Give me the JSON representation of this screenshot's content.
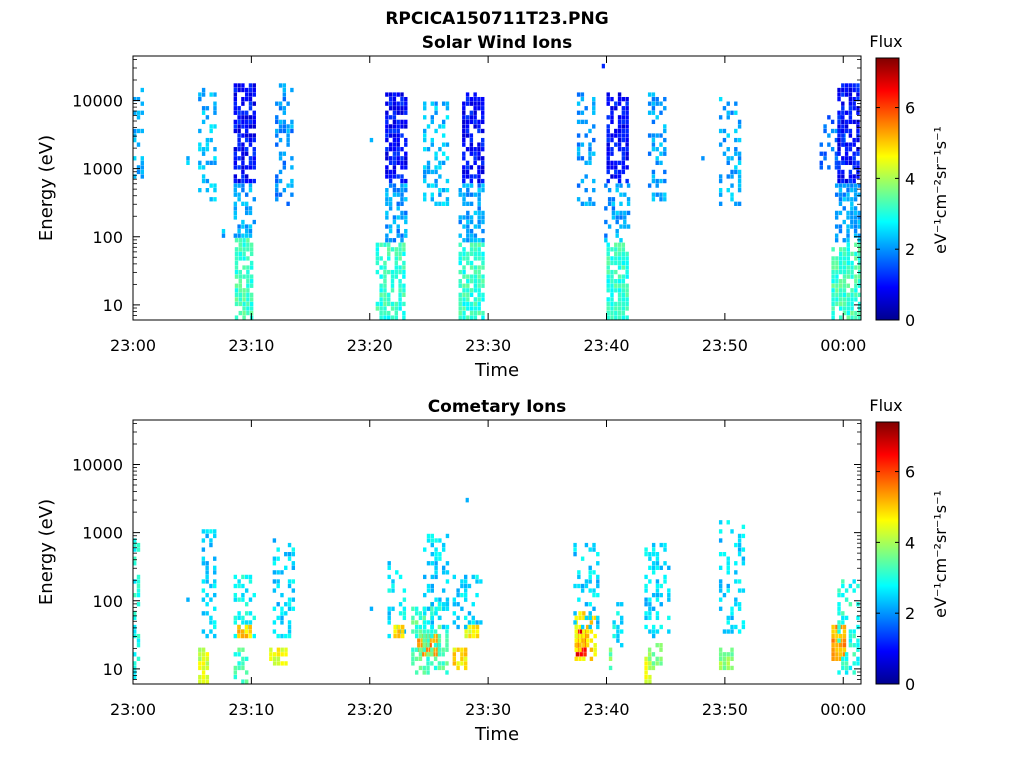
{
  "figure": {
    "filename_title": "RPCICA150711T23.PNG"
  },
  "colors": {
    "colormap": "jet",
    "background": "#ffffff",
    "axis": "#000000"
  },
  "chart_data": [
    {
      "type": "heatmap",
      "title": "Solar Wind Ions",
      "xlabel": "Time",
      "ylabel": "Energy (eV)",
      "x_tick_labels": [
        "23:00",
        "23:10",
        "23:20",
        "23:30",
        "23:40",
        "23:50",
        "00:00"
      ],
      "x_range_minutes": [
        0,
        61.5
      ],
      "y_scale": "log",
      "y_tick_labels": [
        "10",
        "100",
        "1000",
        "10000"
      ],
      "y_range": [
        6,
        45000
      ],
      "colorbar": {
        "title": "Flux",
        "label": "eV⁻¹cm⁻²sr⁻¹s⁻¹",
        "range": [
          0,
          7.4
        ],
        "ticks": [
          "0",
          "2",
          "4",
          "6"
        ]
      },
      "bursts": [
        {
          "t_start_min": 0.0,
          "t_end_min": 0.8,
          "e_min": 600,
          "e_max": 18000,
          "flux_level": 2.2,
          "density": 0.35
        },
        {
          "t_start_min": 4.5,
          "t_end_min": 4.8,
          "e_min": 1200,
          "e_max": 1500,
          "flux_level": 2.3,
          "density": 0.9
        },
        {
          "t_start_min": 5.5,
          "t_end_min": 7.0,
          "e_min": 280,
          "e_max": 17000,
          "flux_level": 2.3,
          "density": 0.35
        },
        {
          "t_start_min": 7.5,
          "t_end_min": 7.8,
          "e_min": 100,
          "e_max": 130,
          "flux_level": 2.3,
          "density": 0.9
        },
        {
          "t_start_min": 8.5,
          "t_end_min": 10.2,
          "e_min": 600,
          "e_max": 18000,
          "flux_level": 1.0,
          "density": 0.75
        },
        {
          "t_start_min": 8.5,
          "t_end_min": 10.2,
          "e_min": 90,
          "e_max": 600,
          "flux_level": 2.1,
          "density": 0.55
        },
        {
          "t_start_min": 8.6,
          "t_end_min": 10.2,
          "e_min": 6,
          "e_max": 90,
          "flux_level": 3.2,
          "density": 0.8
        },
        {
          "t_start_min": 12.0,
          "t_end_min": 13.5,
          "e_min": 300,
          "e_max": 18000,
          "flux_level": 2.0,
          "density": 0.35
        },
        {
          "t_start_min": 20.0,
          "t_end_min": 20.3,
          "e_min": 2500,
          "e_max": 3000,
          "flux_level": 2.3,
          "density": 0.9
        },
        {
          "t_start_min": 21.3,
          "t_end_min": 23.0,
          "e_min": 600,
          "e_max": 14000,
          "flux_level": 1.0,
          "density": 0.75
        },
        {
          "t_start_min": 21.3,
          "t_end_min": 23.0,
          "e_min": 80,
          "e_max": 600,
          "flux_level": 2.1,
          "density": 0.55
        },
        {
          "t_start_min": 20.5,
          "t_end_min": 23.0,
          "e_min": 6,
          "e_max": 80,
          "flux_level": 3.1,
          "density": 0.7
        },
        {
          "t_start_min": 24.5,
          "t_end_min": 26.5,
          "e_min": 280,
          "e_max": 9500,
          "flux_level": 2.3,
          "density": 0.35
        },
        {
          "t_start_min": 27.8,
          "t_end_min": 29.5,
          "e_min": 600,
          "e_max": 14000,
          "flux_level": 1.0,
          "density": 0.75
        },
        {
          "t_start_min": 27.5,
          "t_end_min": 29.5,
          "e_min": 80,
          "e_max": 600,
          "flux_level": 2.1,
          "density": 0.55
        },
        {
          "t_start_min": 27.5,
          "t_end_min": 29.5,
          "e_min": 6,
          "e_max": 80,
          "flux_level": 3.1,
          "density": 0.8
        },
        {
          "t_start_min": 37.5,
          "t_end_min": 39.0,
          "e_min": 280,
          "e_max": 14000,
          "flux_level": 2.0,
          "density": 0.35
        },
        {
          "t_start_min": 40.0,
          "t_end_min": 41.8,
          "e_min": 600,
          "e_max": 14000,
          "flux_level": 1.0,
          "density": 0.75
        },
        {
          "t_start_min": 39.8,
          "t_end_min": 41.8,
          "e_min": 80,
          "e_max": 600,
          "flux_level": 2.1,
          "density": 0.55
        },
        {
          "t_start_min": 40.0,
          "t_end_min": 41.8,
          "e_min": 6,
          "e_max": 80,
          "flux_level": 3.1,
          "density": 0.8
        },
        {
          "t_start_min": 43.5,
          "t_end_min": 45.0,
          "e_min": 350,
          "e_max": 14000,
          "flux_level": 2.1,
          "density": 0.35
        },
        {
          "t_start_min": 48.0,
          "t_end_min": 48.2,
          "e_min": 1400,
          "e_max": 1600,
          "flux_level": 2.3,
          "density": 0.9
        },
        {
          "t_start_min": 49.5,
          "t_end_min": 51.3,
          "e_min": 300,
          "e_max": 11000,
          "flux_level": 2.2,
          "density": 0.35
        },
        {
          "t_start_min": 58.0,
          "t_end_min": 60.0,
          "e_min": 900,
          "e_max": 6000,
          "flux_level": 1.7,
          "density": 0.3
        },
        {
          "t_start_min": 59.5,
          "t_end_min": 61.4,
          "e_min": 600,
          "e_max": 17000,
          "flux_level": 1.0,
          "density": 0.75
        },
        {
          "t_start_min": 59.3,
          "t_end_min": 61.4,
          "e_min": 80,
          "e_max": 600,
          "flux_level": 2.1,
          "density": 0.6
        },
        {
          "t_start_min": 59.0,
          "t_end_min": 61.4,
          "e_min": 6,
          "e_max": 80,
          "flux_level": 3.2,
          "density": 0.8
        }
      ],
      "isolated_points": [
        {
          "t_min": 39.6,
          "e": 32000,
          "flux_level": 1.2
        }
      ]
    },
    {
      "type": "heatmap",
      "title": "Cometary Ions",
      "xlabel": "Time",
      "ylabel": "Energy (eV)",
      "x_tick_labels": [
        "23:00",
        "23:10",
        "23:20",
        "23:30",
        "23:40",
        "23:50",
        "00:00"
      ],
      "x_range_minutes": [
        0,
        61.5
      ],
      "y_scale": "log",
      "y_tick_labels": [
        "10",
        "100",
        "1000",
        "10000"
      ],
      "y_range": [
        6,
        45000
      ],
      "colorbar": {
        "title": "Flux",
        "label": "eV⁻¹cm⁻²sr⁻¹s⁻¹",
        "range": [
          0,
          7.4
        ],
        "ticks": [
          "0",
          "2",
          "4",
          "6"
        ]
      },
      "bursts": [
        {
          "t_start_min": 0.0,
          "t_end_min": 0.6,
          "e_min": 6,
          "e_max": 800,
          "flux_level": 2.9,
          "density": 0.4
        },
        {
          "t_start_min": 4.5,
          "t_end_min": 4.7,
          "e_min": 95,
          "e_max": 110,
          "flux_level": 2.5,
          "density": 0.9
        },
        {
          "t_start_min": 5.5,
          "t_end_min": 6.2,
          "e_min": 6,
          "e_max": 22,
          "flux_level": 4.3,
          "density": 0.9
        },
        {
          "t_start_min": 5.8,
          "t_end_min": 7.0,
          "e_min": 30,
          "e_max": 1100,
          "flux_level": 2.5,
          "density": 0.35
        },
        {
          "t_start_min": 8.5,
          "t_end_min": 10.2,
          "e_min": 30,
          "e_max": 230,
          "flux_level": 2.8,
          "density": 0.4
        },
        {
          "t_start_min": 8.8,
          "t_end_min": 10.0,
          "e_min": 28,
          "e_max": 42,
          "flux_level": 5.0,
          "density": 0.9
        },
        {
          "t_start_min": 8.5,
          "t_end_min": 9.5,
          "e_min": 6,
          "e_max": 22,
          "flux_level": 3.2,
          "density": 0.6
        },
        {
          "t_start_min": 11.5,
          "t_end_min": 13.0,
          "e_min": 11,
          "e_max": 22,
          "flux_level": 4.5,
          "density": 0.9
        },
        {
          "t_start_min": 11.8,
          "t_end_min": 13.5,
          "e_min": 30,
          "e_max": 950,
          "flux_level": 2.5,
          "density": 0.35
        },
        {
          "t_start_min": 20.0,
          "t_end_min": 20.3,
          "e_min": 70,
          "e_max": 80,
          "flux_level": 2.5,
          "density": 0.9
        },
        {
          "t_start_min": 21.5,
          "t_end_min": 23.0,
          "e_min": 30,
          "e_max": 400,
          "flux_level": 2.6,
          "density": 0.35
        },
        {
          "t_start_min": 22.0,
          "t_end_min": 22.8,
          "e_min": 28,
          "e_max": 42,
          "flux_level": 5.0,
          "density": 0.9
        },
        {
          "t_start_min": 24.0,
          "t_end_min": 25.8,
          "e_min": 14,
          "e_max": 32,
          "flux_level": 5.4,
          "density": 0.9
        },
        {
          "t_start_min": 23.5,
          "t_end_min": 26.5,
          "e_min": 8,
          "e_max": 100,
          "flux_level": 3.3,
          "density": 0.55
        },
        {
          "t_start_min": 24.5,
          "t_end_min": 26.5,
          "e_min": 40,
          "e_max": 1000,
          "flux_level": 2.5,
          "density": 0.35
        },
        {
          "t_start_min": 27.0,
          "t_end_min": 28.0,
          "e_min": 10,
          "e_max": 22,
          "flux_level": 4.8,
          "density": 0.9
        },
        {
          "t_start_min": 28.0,
          "t_end_min": 29.2,
          "e_min": 28,
          "e_max": 42,
          "flux_level": 4.6,
          "density": 0.8
        },
        {
          "t_start_min": 27.0,
          "t_end_min": 29.5,
          "e_min": 40,
          "e_max": 250,
          "flux_level": 2.5,
          "density": 0.35
        },
        {
          "t_start_min": 37.4,
          "t_end_min": 38.2,
          "e_min": 16,
          "e_max": 40,
          "flux_level": 6.4,
          "density": 0.95
        },
        {
          "t_start_min": 37.3,
          "t_end_min": 39.0,
          "e_min": 12,
          "e_max": 70,
          "flux_level": 4.8,
          "density": 0.7
        },
        {
          "t_start_min": 37.2,
          "t_end_min": 39.2,
          "e_min": 40,
          "e_max": 700,
          "flux_level": 2.5,
          "density": 0.35
        },
        {
          "t_start_min": 40.2,
          "t_end_min": 40.5,
          "e_min": 9,
          "e_max": 20,
          "flux_level": 3.6,
          "density": 0.8
        },
        {
          "t_start_min": 40.5,
          "t_end_min": 41.2,
          "e_min": 20,
          "e_max": 90,
          "flux_level": 2.7,
          "density": 0.4
        },
        {
          "t_start_min": 43.2,
          "t_end_min": 45.2,
          "e_min": 30,
          "e_max": 700,
          "flux_level": 2.5,
          "density": 0.35
        },
        {
          "t_start_min": 43.2,
          "t_end_min": 43.7,
          "e_min": 6,
          "e_max": 14,
          "flux_level": 4.3,
          "density": 0.9
        },
        {
          "t_start_min": 43.5,
          "t_end_min": 44.5,
          "e_min": 10,
          "e_max": 25,
          "flux_level": 3.8,
          "density": 0.6
        },
        {
          "t_start_min": 49.5,
          "t_end_min": 51.5,
          "e_min": 30,
          "e_max": 1500,
          "flux_level": 2.5,
          "density": 0.3
        },
        {
          "t_start_min": 49.5,
          "t_end_min": 50.5,
          "e_min": 10,
          "e_max": 22,
          "flux_level": 3.8,
          "density": 0.7
        },
        {
          "t_start_min": 59.0,
          "t_end_min": 60.2,
          "e_min": 12,
          "e_max": 45,
          "flux_level": 5.3,
          "density": 0.85
        },
        {
          "t_start_min": 59.5,
          "t_end_min": 61.4,
          "e_min": 8,
          "e_max": 200,
          "flux_level": 3.0,
          "density": 0.45
        }
      ],
      "isolated_points": [
        {
          "t_min": 28.1,
          "e": 3000,
          "flux_level": 2.2
        }
      ]
    }
  ]
}
